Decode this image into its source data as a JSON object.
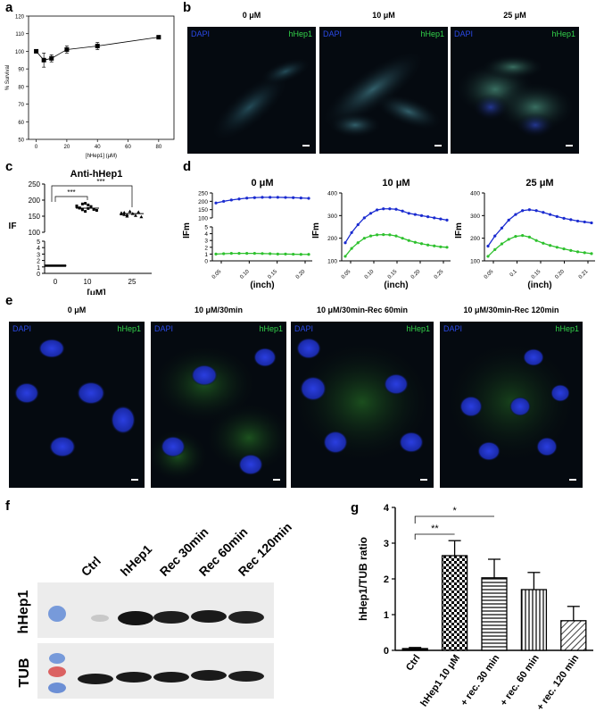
{
  "panels": {
    "a": "a",
    "b": "b",
    "c": "c",
    "d": "d",
    "e": "e",
    "f": "f",
    "g": "g"
  },
  "panel_b": {
    "titles": [
      "0 μM",
      "10 μM",
      "25 μM"
    ],
    "dapi": "DAPI",
    "hhep": "hHep1"
  },
  "panel_c": {
    "title": "Anti-hHep1",
    "ylabel": "IF",
    "xlabel": "[μM]",
    "sig": "***"
  },
  "panel_d": {
    "titles": [
      "0 μM",
      "10 μM",
      "25 μM"
    ],
    "ylabel": "IFm",
    "xlabel": "(inch)"
  },
  "panel_e": {
    "titles": [
      "0 μM",
      "10 μM/30min",
      "10 μM/30min-Rec 60min",
      "10 μM/30min-Rec 120min"
    ],
    "dapi": "DAPI",
    "hhep": "hHep1"
  },
  "panel_f": {
    "lanes": [
      "Ctrl",
      "hHep1",
      "Rec 30min",
      "Rec 60min",
      "Rec 120min"
    ],
    "rows": [
      "hHep1",
      "TUB"
    ]
  },
  "chart_data": [
    {
      "panel": "a",
      "type": "line",
      "xlabel": "[hHep1] (μM)",
      "ylabel": "% Survival",
      "x": [
        0,
        5,
        10,
        20,
        40,
        80
      ],
      "values": [
        100,
        95,
        96,
        101,
        103,
        108
      ],
      "errors": [
        0,
        4,
        2,
        2,
        2,
        0
      ],
      "xlim": [
        -5,
        90
      ],
      "ylim": [
        50,
        120
      ],
      "xticks": [
        "0",
        "20",
        "40",
        "60",
        "80"
      ],
      "yticks": [
        "50",
        "60",
        "70",
        "80",
        "90",
        "100",
        "110",
        "120"
      ]
    },
    {
      "panel": "c",
      "type": "scatter",
      "title": "Anti-hHep1",
      "xlabel": "[μM]",
      "ylabel": "IF",
      "categories": [
        "0",
        "10",
        "25"
      ],
      "means": [
        1.2,
        175,
        158
      ],
      "yticks_upper": [
        "100",
        "150",
        "200",
        "250"
      ],
      "yticks_lower": [
        "0",
        "1",
        "2",
        "3",
        "4",
        "5"
      ],
      "yticks_upper_all": [
        "100",
        "150",
        "200",
        "250"
      ],
      "significance": [
        "***",
        "***"
      ]
    },
    {
      "panel": "d-0",
      "type": "line",
      "title": "0 μM",
      "xlabel": "(inch)",
      "ylabel": "IFm",
      "xticks": [
        "0.05",
        "0.10",
        "0.15",
        "0.20"
      ],
      "yticks_upper": [
        "100",
        "150",
        "200",
        "250"
      ],
      "yticks_lower": [
        "0",
        "1",
        "2",
        "3",
        "4",
        "5"
      ],
      "series": [
        {
          "name": "",
          "color": "#1a2bd0",
          "values": [
            190,
            200,
            208,
            214,
            219,
            222,
            224,
            224,
            224,
            223,
            222,
            220,
            218
          ]
        },
        {
          "name": "",
          "color": "#2ec12e",
          "values": [
            1.0,
            1.05,
            1.1,
            1.1,
            1.1,
            1.1,
            1.08,
            1.05,
            1.0,
            1.0,
            0.98,
            0.95,
            0.95
          ]
        }
      ]
    },
    {
      "panel": "d-10",
      "type": "line",
      "title": "10 μM",
      "xlabel": "(inch)",
      "ylabel": "IFm",
      "ylim": [
        100,
        400
      ],
      "xticks": [
        "0.05",
        "0.10",
        "0.15",
        "0.20",
        "0.25"
      ],
      "yticks": [
        "100",
        "200",
        "300",
        "400"
      ],
      "series": [
        {
          "name": "",
          "color": "#1a2bd0",
          "values": [
            180,
            225,
            260,
            290,
            310,
            325,
            330,
            330,
            328,
            320,
            310,
            305,
            300,
            295,
            290,
            285,
            280
          ]
        },
        {
          "name": "",
          "color": "#2ec12e",
          "values": [
            120,
            155,
            180,
            200,
            210,
            215,
            216,
            215,
            210,
            200,
            190,
            182,
            176,
            170,
            166,
            162,
            160
          ]
        }
      ]
    },
    {
      "panel": "d-25",
      "type": "line",
      "title": "25 μM",
      "xlabel": "(inch)",
      "ylabel": "IFm",
      "ylim": [
        100,
        400
      ],
      "xticks": [
        "0.05",
        "0.1",
        "0.15",
        "0.20",
        "0.21"
      ],
      "yticks": [
        "100",
        "200",
        "300",
        "400"
      ],
      "series": [
        {
          "name": "",
          "color": "#1a2bd0",
          "values": [
            165,
            210,
            245,
            280,
            305,
            322,
            326,
            322,
            314,
            305,
            296,
            288,
            282,
            276,
            272,
            268
          ]
        },
        {
          "name": "",
          "color": "#2ec12e",
          "values": [
            120,
            150,
            175,
            195,
            208,
            212,
            205,
            190,
            178,
            168,
            160,
            153,
            146,
            140,
            136,
            132
          ]
        }
      ]
    },
    {
      "panel": "g",
      "type": "bar",
      "ylabel": "hHep1/TUB ratio",
      "categories": [
        "Ctrl",
        "hHep1 10 μM",
        "+ rec. 30 min",
        "+ rec. 60 min",
        "+ rec. 120 min"
      ],
      "values": [
        0.05,
        2.65,
        2.03,
        1.7,
        0.83
      ],
      "errors": [
        0.03,
        0.42,
        0.52,
        0.48,
        0.4
      ],
      "ylim": [
        0,
        4
      ],
      "yticks": [
        "0",
        "1",
        "2",
        "3",
        "4"
      ],
      "significance": [
        "**",
        "*"
      ]
    }
  ]
}
